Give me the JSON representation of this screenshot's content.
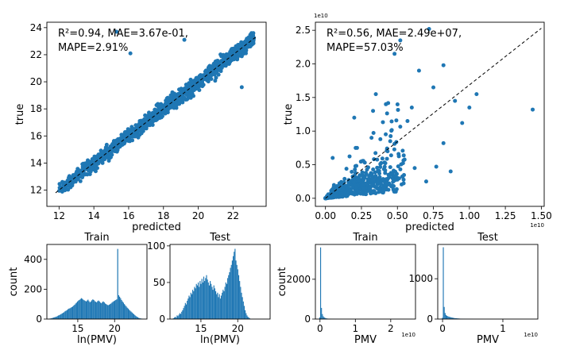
{
  "chart_data": [
    {
      "id": "scatter_log",
      "type": "scatter",
      "xlabel": "predicted",
      "ylabel": "true",
      "xlim": [
        11.3,
        23.9
      ],
      "ylim": [
        10.8,
        24.4
      ],
      "xticks": [
        12,
        14,
        16,
        18,
        20,
        22
      ],
      "yticks": [
        12,
        14,
        16,
        18,
        20,
        22,
        24
      ],
      "annotation": [
        "R²=0.94, MAE=3.67e-01,",
        "MAPE=2.91%"
      ],
      "diag": [
        [
          11.8,
          11.8
        ],
        [
          23.3,
          23.3
        ]
      ],
      "outliers": [
        [
          15.3,
          23.7
        ],
        [
          16.1,
          22.1
        ],
        [
          19.2,
          23.1
        ],
        [
          22.5,
          19.6
        ]
      ],
      "noise": 0.45,
      "points": 1400,
      "color": "#1f77b4"
    },
    {
      "id": "scatter_raw",
      "type": "scatter",
      "xlabel": "predicted",
      "ylabel": "true",
      "x_exponent": "1e10",
      "y_exponent": "1e10",
      "xlim": [
        -0.07,
        1.52
      ],
      "ylim": [
        -0.12,
        2.62
      ],
      "xticks": [
        0.0,
        0.25,
        0.5,
        0.75,
        1.0,
        1.25,
        1.5
      ],
      "xticklabels": [
        "0.00",
        "0.25",
        "0.50",
        "0.75",
        "1.00",
        "1.25",
        "1.50"
      ],
      "yticks": [
        0.0,
        0.5,
        1.0,
        1.5,
        2.0,
        2.5
      ],
      "yticklabels": [
        "0.0",
        "0.5",
        "1.0",
        "1.5",
        "2.0",
        "2.5"
      ],
      "annotation": [
        "R²=0.56, MAE=2.49e+07,",
        "MAPE=57.03%"
      ],
      "diag": [
        [
          0.0,
          0.0
        ],
        [
          1.5,
          2.53
        ]
      ],
      "outliers": [
        [
          0.72,
          2.52
        ],
        [
          0.52,
          2.35
        ],
        [
          0.48,
          2.15
        ],
        [
          0.65,
          1.9
        ],
        [
          0.82,
          1.98
        ],
        [
          0.75,
          1.65
        ],
        [
          1.44,
          1.32
        ],
        [
          1.05,
          1.55
        ],
        [
          0.9,
          1.45
        ],
        [
          0.6,
          1.35
        ],
        [
          0.42,
          1.4
        ],
        [
          0.95,
          1.12
        ],
        [
          0.57,
          1.15
        ],
        [
          0.87,
          0.4
        ],
        [
          0.77,
          0.47
        ],
        [
          0.35,
          1.55
        ],
        [
          0.2,
          1.2
        ],
        [
          0.45,
          0.85
        ],
        [
          0.05,
          0.6
        ],
        [
          0.62,
          0.45
        ],
        [
          0.32,
          0.9
        ],
        [
          0.7,
          0.25
        ],
        [
          0.82,
          0.82
        ],
        [
          1.0,
          1.35
        ]
      ],
      "points": 700,
      "color": "#1f77b4"
    },
    {
      "id": "hist_train_log",
      "type": "bar",
      "title": "Train",
      "xlabel": "ln(PMV)",
      "ylabel": "count",
      "xlim": [
        10.8,
        24.4
      ],
      "ylim": [
        0,
        500
      ],
      "xticks": [
        15,
        20
      ],
      "yticks": [
        0,
        200,
        400
      ],
      "bin_start": 11.0,
      "bin_width": 0.13,
      "values": [
        2,
        3,
        4,
        6,
        8,
        10,
        12,
        14,
        16,
        20,
        24,
        26,
        30,
        34,
        38,
        42,
        46,
        52,
        56,
        60,
        66,
        70,
        72,
        76,
        80,
        84,
        90,
        96,
        104,
        110,
        118,
        124,
        128,
        134,
        140,
        136,
        130,
        126,
        122,
        118,
        124,
        130,
        120,
        112,
        118,
        126,
        132,
        128,
        120,
        116,
        112,
        120,
        124,
        118,
        110,
        106,
        114,
        118,
        112,
        104,
        100,
        96,
        92,
        96,
        100,
        104,
        110,
        116,
        120,
        124,
        128,
        132,
        470,
        160,
        150,
        140,
        128,
        118,
        110,
        100,
        92,
        84,
        76,
        70,
        62,
        56,
        50,
        44,
        38,
        32,
        26,
        20,
        16,
        12,
        8,
        6,
        4,
        3,
        2,
        1
      ],
      "color": "#1f77b4"
    },
    {
      "id": "hist_test_log",
      "type": "bar",
      "title": "Test",
      "xlabel": "ln(PMV)",
      "ylabel": "",
      "xlim": [
        10.8,
        24.4
      ],
      "ylim": [
        0,
        102
      ],
      "xticks": [
        15,
        20
      ],
      "yticks": [
        0,
        50,
        100
      ],
      "bin_start": 11.2,
      "bin_width": 0.125,
      "values": [
        1,
        2,
        3,
        2,
        5,
        4,
        6,
        8,
        7,
        10,
        12,
        15,
        18,
        22,
        20,
        25,
        28,
        32,
        30,
        36,
        34,
        40,
        38,
        44,
        42,
        48,
        46,
        50,
        44,
        52,
        48,
        55,
        50,
        58,
        52,
        56,
        60,
        54,
        50,
        46,
        52,
        48,
        44,
        40,
        46,
        42,
        38,
        34,
        36,
        30,
        34,
        28,
        32,
        36,
        40,
        38,
        44,
        50,
        48,
        56,
        60,
        64,
        70,
        74,
        80,
        86,
        92,
        96,
        80,
        74,
        68,
        60,
        52,
        44,
        36,
        30,
        24,
        18,
        12,
        8,
        5,
        3,
        2,
        1
      ],
      "color": "#1f77b4"
    },
    {
      "id": "hist_train_raw",
      "type": "bar",
      "title": "Train",
      "xlabel": "PMV",
      "ylabel": "count",
      "x_exponent": "1e10",
      "xlim": [
        -0.13,
        2.7
      ],
      "ylim": [
        0,
        3750
      ],
      "xticks": [
        0,
        1,
        2
      ],
      "yticks": [
        0,
        2000
      ],
      "bin_start": -0.02,
      "bin_width": 0.025,
      "values": [
        80,
        3600,
        560,
        250,
        140,
        90,
        60,
        40,
        30,
        24,
        18,
        14,
        12,
        10,
        8,
        7,
        6,
        5,
        4,
        4,
        3,
        3,
        2,
        2,
        2,
        2,
        1,
        1,
        1,
        1,
        1,
        1,
        1,
        1,
        1,
        0,
        1,
        0,
        1,
        0,
        1
      ],
      "color": "#1f77b4"
    },
    {
      "id": "hist_test_raw",
      "type": "bar",
      "title": "Test",
      "xlabel": "PMV",
      "ylabel": "",
      "x_exponent": "1e10",
      "xlim": [
        -0.08,
        1.58
      ],
      "ylim": [
        0,
        1850
      ],
      "xticks": [
        0,
        1
      ],
      "yticks": [
        0,
        1000
      ],
      "bin_start": -0.01,
      "bin_width": 0.015,
      "values": [
        30,
        1780,
        300,
        150,
        100,
        80,
        70,
        60,
        52,
        46,
        40,
        34,
        30,
        26,
        22,
        20,
        18,
        16,
        14,
        12,
        10,
        9,
        8,
        7,
        6,
        5,
        4,
        4,
        3,
        3,
        2,
        2,
        2,
        2,
        1,
        1,
        1,
        1
      ],
      "color": "#1f77b4"
    }
  ]
}
